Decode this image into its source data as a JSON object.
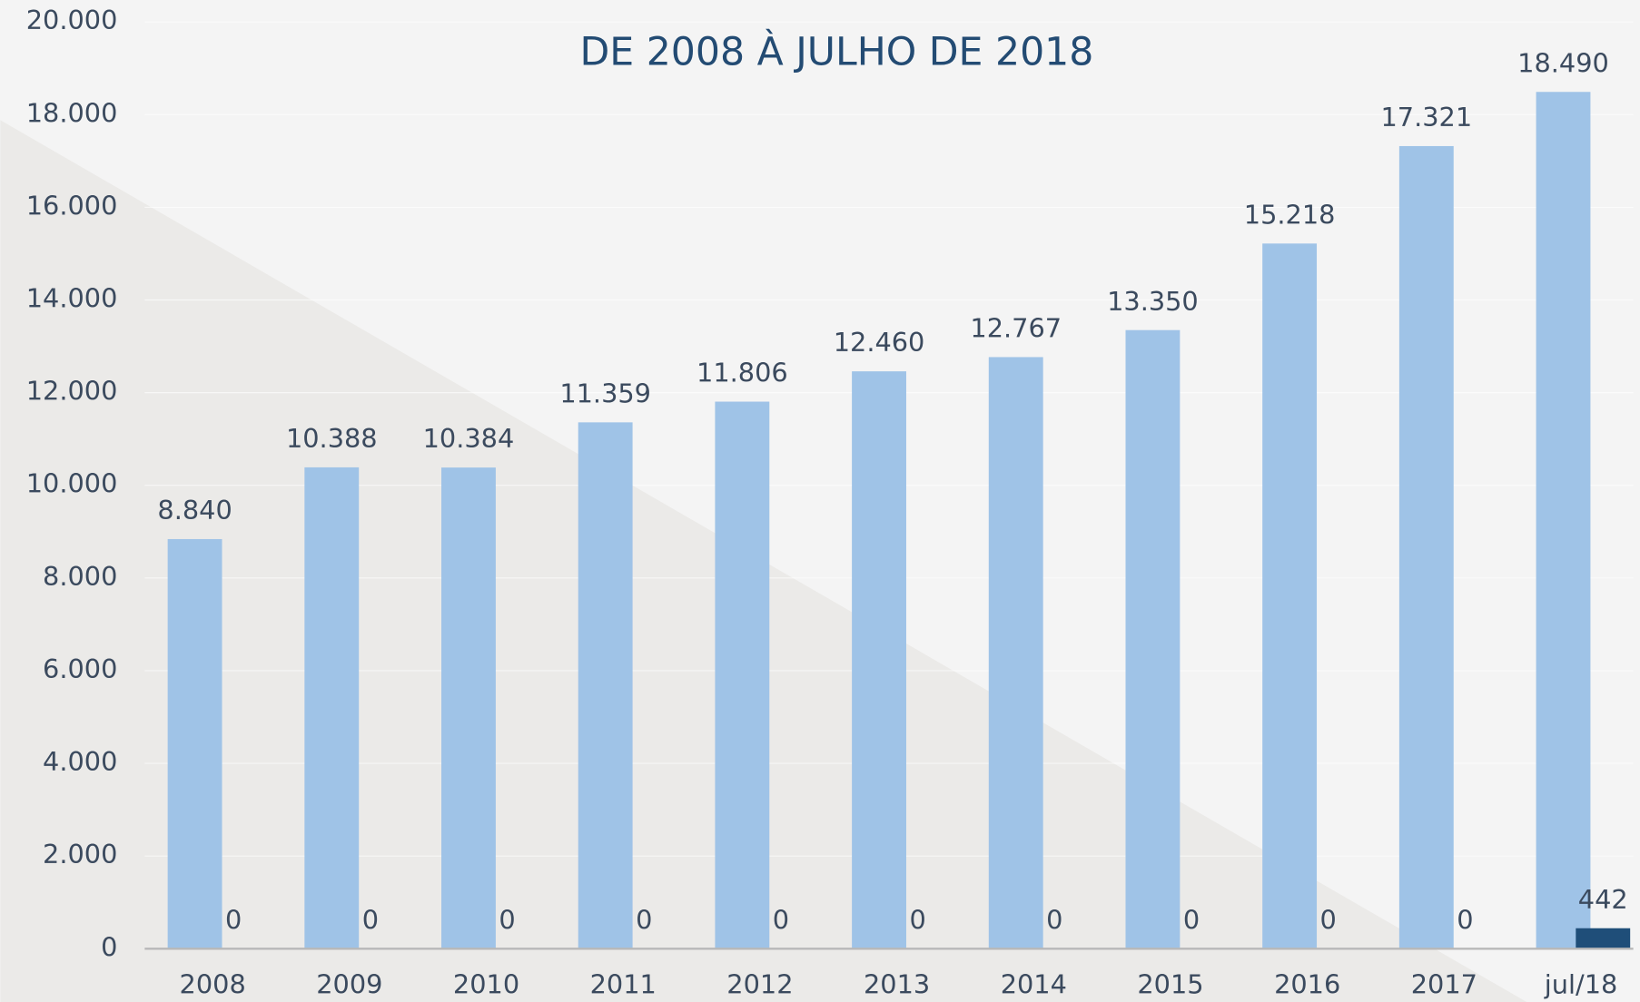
{
  "chart_data": {
    "type": "bar",
    "title": "DE 2008 À JULHO DE 2018",
    "categories": [
      "2008",
      "2009",
      "2010",
      "2011",
      "2012",
      "2013",
      "2014",
      "2015",
      "2016",
      "2017",
      "jul/18"
    ],
    "series": [
      {
        "color": "#9fc3e7",
        "values": [
          8840,
          10388,
          10384,
          11359,
          11806,
          12460,
          12767,
          13350,
          15218,
          17321,
          18490
        ],
        "value_labels": [
          "8.840",
          "10.388",
          "10.384",
          "11.359",
          "11.806",
          "12.460",
          "12.767",
          "13.350",
          "15.218",
          "17.321",
          "18.490"
        ]
      },
      {
        "color": "#1f4e79",
        "values": [
          0,
          0,
          0,
          0,
          0,
          0,
          0,
          0,
          0,
          0,
          442
        ]
      }
    ],
    "ylim": [
      0,
      20000
    ],
    "yticks": [
      0,
      {
        "value": 2000,
        "label": "2.000"
      },
      {
        "value": 4000,
        "label": "4.000"
      },
      {
        "value": 6000,
        "label": "6.000"
      },
      {
        "value": 8000,
        "label": "8.000"
      },
      {
        "value": 10000,
        "label": "10.000"
      },
      {
        "value": 12000,
        "label": "12.000"
      },
      {
        "value": 14000,
        "label": "14.000"
      },
      {
        "value": 16000,
        "label": "16.000"
      },
      {
        "value": 18000,
        "label": "18.000"
      },
      {
        "value": 20000,
        "label": "20.000"
      }
    ],
    "grid": true
  }
}
